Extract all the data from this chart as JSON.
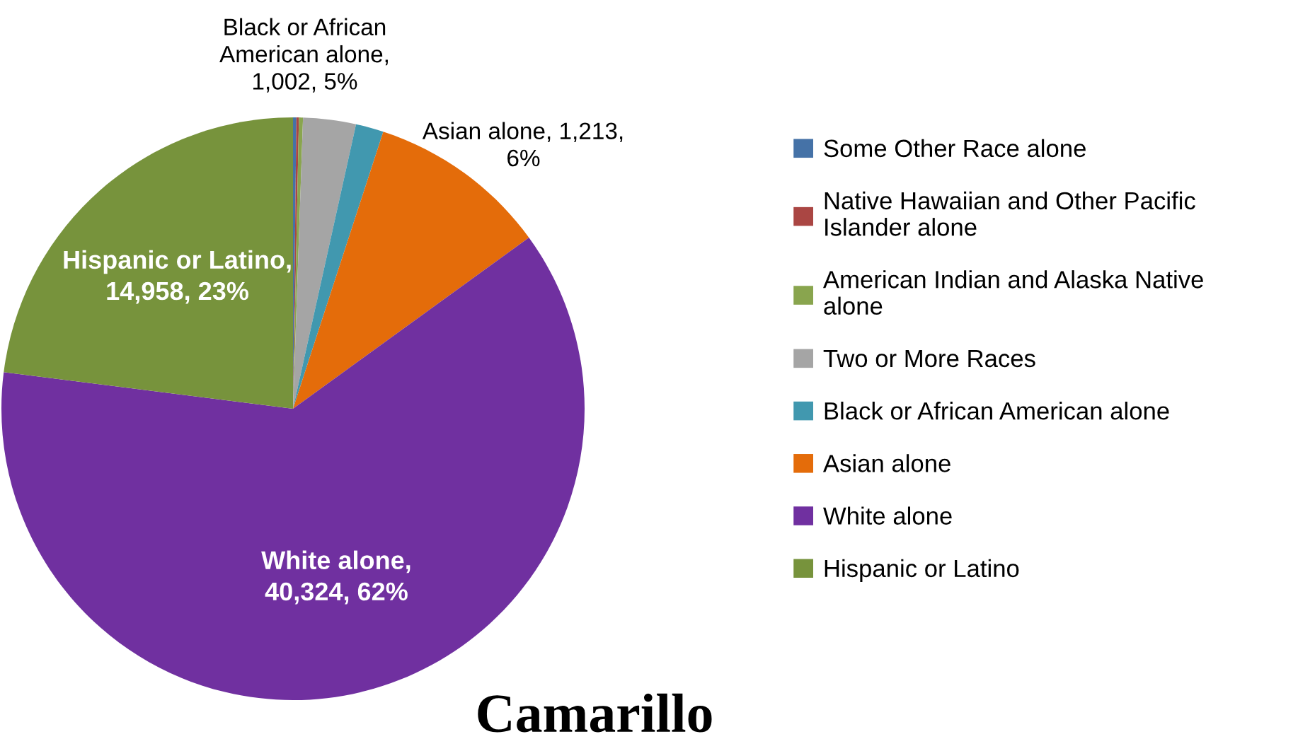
{
  "chart_data": {
    "type": "pie",
    "title": "Camarillo",
    "categories": [
      "Some Other Race alone",
      "Native Hawaiian and Other Pacific Islander alone",
      "American Indian and Alaska Native alone",
      "Two or More Races",
      "Black or African American alone",
      "Asian alone",
      "White alone",
      "Hispanic or Latino"
    ],
    "values": [
      120,
      90,
      146,
      1900,
      1002,
      6500,
      40324,
      14958
    ],
    "value_labels": [
      null,
      null,
      null,
      null,
      null,
      null,
      "White alone,\n40,324, 62%",
      "Hispanic or Latino,\n14,958, 23%"
    ],
    "annotations": [
      "Black or African\nAmerican alone,\n1,002, 5%",
      "Asian alone, 1,213,\n6%"
    ],
    "colors": [
      "#4572a7",
      "#aa4643",
      "#89a54e",
      "#a5a5a5",
      "#4198af",
      "#e46c0a",
      "#7030a0",
      "#77933c"
    ],
    "legend": "right"
  }
}
